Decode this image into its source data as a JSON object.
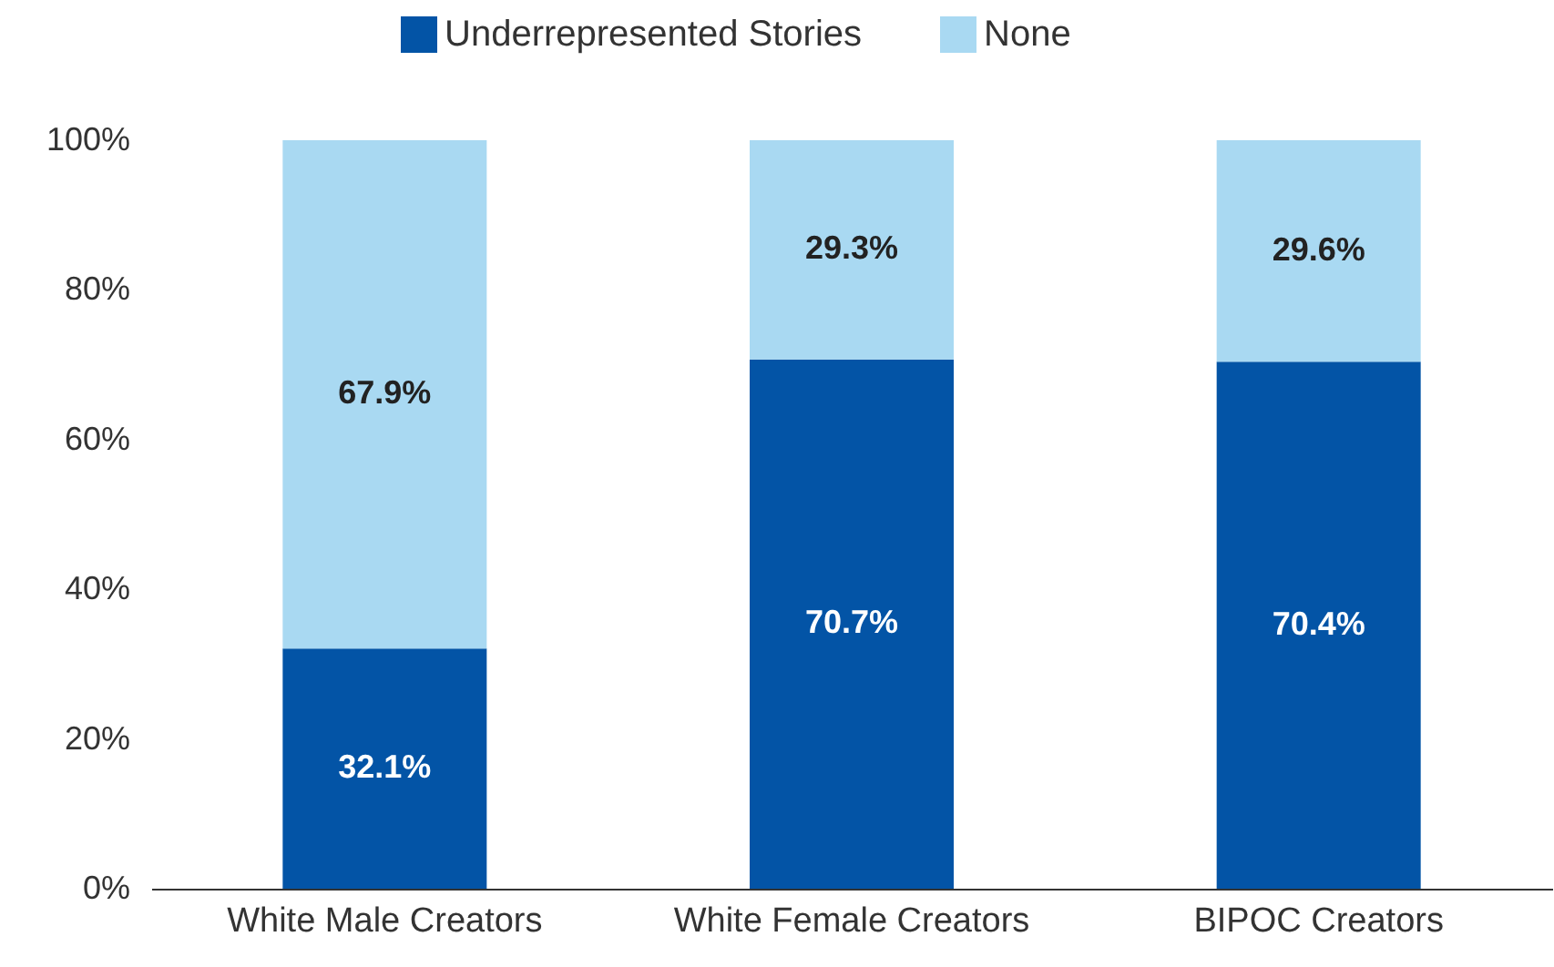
{
  "chart_data": {
    "type": "bar",
    "stacked": true,
    "categories": [
      "White Male Creators",
      "White Female Creators",
      "BIPOC Creators"
    ],
    "series": [
      {
        "name": "Underrepresented Stories",
        "color": "#0354a6",
        "values": [
          32.1,
          70.7,
          70.4
        ],
        "value_labels": [
          "32.1%",
          "70.7%",
          "70.4%"
        ]
      },
      {
        "name": "None",
        "color": "#a9d9f2",
        "values": [
          67.9,
          29.3,
          29.6
        ],
        "value_labels": [
          "67.9%",
          "29.3%",
          "29.6%"
        ]
      }
    ],
    "ylim": [
      0,
      100
    ],
    "yticks": [
      {
        "value": 0,
        "label": "0%"
      },
      {
        "value": 20,
        "label": "20%"
      },
      {
        "value": 40,
        "label": "40%"
      },
      {
        "value": 60,
        "label": "60%"
      },
      {
        "value": 80,
        "label": "80%"
      },
      {
        "value": 100,
        "label": "100%"
      }
    ],
    "grid": false,
    "legend": "top"
  }
}
